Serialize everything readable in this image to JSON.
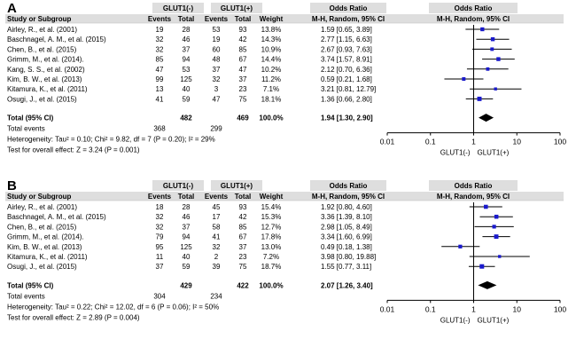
{
  "chart_data": [
    {
      "type": "forest",
      "panel_label": "A",
      "headers": {
        "group1": "GLUT1(-)",
        "group2": "GLUT1(+)",
        "odds_ratio": "Odds Ratio",
        "study": "Study or Subgroup",
        "events": "Events",
        "total": "Total",
        "weight": "Weight",
        "method": "M-H, Random, 95% CI"
      },
      "studies": [
        {
          "name": "Airley, R., et al. (2001)",
          "e1": "19",
          "t1": "28",
          "e2": "53",
          "t2": "93",
          "weight": "13.8%",
          "ci_text": "1.59 [0.65, 3.89]",
          "or": 1.59,
          "lo": 0.65,
          "hi": 3.89
        },
        {
          "name": "Baschnagel, A. M., et al. (2015)",
          "e1": "32",
          "t1": "46",
          "e2": "19",
          "t2": "42",
          "weight": "14.3%",
          "ci_text": "2.77 [1.15, 6.63]",
          "or": 2.77,
          "lo": 1.15,
          "hi": 6.63
        },
        {
          "name": "Chen, B., et al. (2015)",
          "e1": "32",
          "t1": "37",
          "e2": "60",
          "t2": "85",
          "weight": "10.9%",
          "ci_text": "2.67 [0.93, 7.63]",
          "or": 2.67,
          "lo": 0.93,
          "hi": 7.63
        },
        {
          "name": "Grimm, M., et al. (2014).",
          "e1": "85",
          "t1": "94",
          "e2": "48",
          "t2": "67",
          "weight": "14.4%",
          "ci_text": "3.74 [1.57, 8.91]",
          "or": 3.74,
          "lo": 1.57,
          "hi": 8.91
        },
        {
          "name": "Kang, S. S., et al. (2002)",
          "e1": "47",
          "t1": "53",
          "e2": "37",
          "t2": "47",
          "weight": "10.2%",
          "ci_text": "2.12 [0.70, 6.36]",
          "or": 2.12,
          "lo": 0.7,
          "hi": 6.36
        },
        {
          "name": "Kim, B. W., et al. (2013)",
          "e1": "99",
          "t1": "125",
          "e2": "32",
          "t2": "37",
          "weight": "11.2%",
          "ci_text": "0.59 [0.21, 1.68]",
          "or": 0.59,
          "lo": 0.21,
          "hi": 1.68
        },
        {
          "name": "Kitamura, K., et al. (2011)",
          "e1": "13",
          "t1": "40",
          "e2": "3",
          "t2": "23",
          "weight": "7.1%",
          "ci_text": "3.21 [0.81, 12.79]",
          "or": 3.21,
          "lo": 0.81,
          "hi": 12.79
        },
        {
          "name": "Osugi, J., et al. (2015)",
          "e1": "41",
          "t1": "59",
          "e2": "47",
          "t2": "75",
          "weight": "18.1%",
          "ci_text": "1.36 [0.66, 2.80]",
          "or": 1.36,
          "lo": 0.66,
          "hi": 2.8
        }
      ],
      "total": {
        "label": "Total (95% CI)",
        "t1": "482",
        "t2": "469",
        "weight": "100.0%",
        "ci_text": "1.94 [1.30, 2.90]",
        "or": 1.94,
        "lo": 1.3,
        "hi": 2.9
      },
      "total_events": {
        "label": "Total events",
        "e1": "368",
        "e2": "299"
      },
      "heterogeneity": "Heterogeneity: Tau² = 0.10; Chi² = 9.82, df = 7 (P = 0.20); I² = 29%",
      "overall_effect": "Test for overall effect: Z = 3.24 (P = 0.001)",
      "axis": {
        "scale": "log",
        "xlim": [
          0.01,
          100
        ],
        "ticks": [
          "0.01",
          "0.1",
          "1",
          "10",
          "100"
        ],
        "label_left": "GLUT1(-)",
        "label_right": "GLUT1(+)"
      }
    },
    {
      "type": "forest",
      "panel_label": "B",
      "headers": {
        "group1": "GLUT1(-)",
        "group2": "GLUT1(+)",
        "odds_ratio": "Odds Ratio",
        "study": "Study or Subgroup",
        "events": "Events",
        "total": "Total",
        "weight": "Weight",
        "method": "M-H, Random, 95% CI"
      },
      "studies": [
        {
          "name": "Airley, R., et al. (2001)",
          "e1": "18",
          "t1": "28",
          "e2": "45",
          "t2": "93",
          "weight": "15.4%",
          "ci_text": "1.92 [0.80, 4.60]",
          "or": 1.92,
          "lo": 0.8,
          "hi": 4.6
        },
        {
          "name": "Baschnagel, A. M., et al. (2015)",
          "e1": "32",
          "t1": "46",
          "e2": "17",
          "t2": "42",
          "weight": "15.3%",
          "ci_text": "3.36 [1.39, 8.10]",
          "or": 3.36,
          "lo": 1.39,
          "hi": 8.1
        },
        {
          "name": "Chen, B., et al. (2015)",
          "e1": "32",
          "t1": "37",
          "e2": "58",
          "t2": "85",
          "weight": "12.7%",
          "ci_text": "2.98 [1.05, 8.49]",
          "or": 2.98,
          "lo": 1.05,
          "hi": 8.49
        },
        {
          "name": "Grimm, M., et al. (2014).",
          "e1": "79",
          "t1": "94",
          "e2": "41",
          "t2": "67",
          "weight": "17.8%",
          "ci_text": "3.34 [1.60, 6.99]",
          "or": 3.34,
          "lo": 1.6,
          "hi": 6.99
        },
        {
          "name": "Kim, B. W., et al. (2013)",
          "e1": "95",
          "t1": "125",
          "e2": "32",
          "t2": "37",
          "weight": "13.0%",
          "ci_text": "0.49 [0.18, 1.38]",
          "or": 0.49,
          "lo": 0.18,
          "hi": 1.38
        },
        {
          "name": "Kitamura, K., et al. (2011)",
          "e1": "11",
          "t1": "40",
          "e2": "2",
          "t2": "23",
          "weight": "7.2%",
          "ci_text": "3.98 [0.80, 19.88]",
          "or": 3.98,
          "lo": 0.8,
          "hi": 19.88
        },
        {
          "name": "Osugi, J., et al. (2015)",
          "e1": "37",
          "t1": "59",
          "e2": "39",
          "t2": "75",
          "weight": "18.7%",
          "ci_text": "1.55 [0.77, 3.11]",
          "or": 1.55,
          "lo": 0.77,
          "hi": 3.11
        }
      ],
      "total": {
        "label": "Total (95% CI)",
        "t1": "429",
        "t2": "422",
        "weight": "100.0%",
        "ci_text": "2.07 [1.26, 3.40]",
        "or": 2.07,
        "lo": 1.26,
        "hi": 3.4
      },
      "total_events": {
        "label": "Total events",
        "e1": "304",
        "e2": "234"
      },
      "heterogeneity": "Heterogeneity: Tau² = 0.22; Chi² = 12.02, df = 6 (P = 0.06); I² = 50%",
      "overall_effect": "Test for overall effect: Z = 2.89 (P = 0.004)",
      "axis": {
        "scale": "log",
        "xlim": [
          0.01,
          100
        ],
        "ticks": [
          "0.01",
          "0.1",
          "1",
          "10",
          "100"
        ],
        "label_left": "GLUT1(-)",
        "label_right": "GLUT1(+)"
      }
    }
  ],
  "colors": {
    "square": "#1a1acc",
    "header_bg": "#dedede",
    "ink": "#000000"
  }
}
